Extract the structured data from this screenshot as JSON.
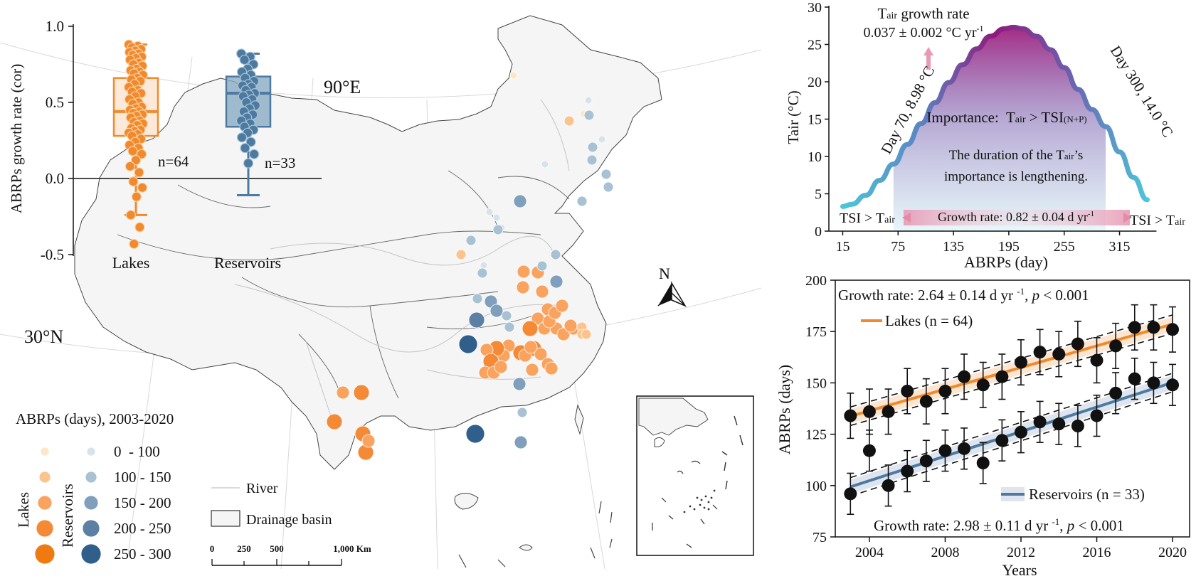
{
  "colors": {
    "lake": "#f08a2c",
    "reservoir": "#4d7aa0",
    "lake_box_fill": "#fde4cf",
    "reservoir_box_fill": "#8aaac3",
    "map_fill": "#f5f5f5",
    "curve_start": "#4cc6d8",
    "curve_peak": "#8e1a7c",
    "band_pink": "#e79ab4"
  },
  "map": {
    "lat_label": "30°N",
    "lon_label": "90°E",
    "north_label": "N",
    "legend_title": "ABRPs (days), 2003-2020",
    "lakes_label": "Lakes",
    "reservoirs_label": "Reservoirs",
    "classes": [
      "0  - 100",
      "100 - 150",
      "150 - 200",
      "200 - 250",
      "250 - 300"
    ],
    "river_label": "River",
    "basin_label": "Drainage basin",
    "scale_ticks": [
      "0",
      "250",
      "500",
      "1,000 Km"
    ]
  },
  "chart_data": [
    {
      "type": "box",
      "ylabel": "ABRPs growth rate (cor)",
      "ylim": [
        -0.5,
        1.0
      ],
      "yticks": [
        "1.0",
        "0.5",
        "0.0",
        "-0.5"
      ],
      "categories": [
        "Lakes",
        "Reservoirs"
      ],
      "counts": [
        "n=64",
        "n=33"
      ],
      "boxes": [
        {
          "name": "Lakes",
          "whisker_low": -0.24,
          "q1": 0.28,
          "median": 0.44,
          "q3": 0.66,
          "whisker_high": 0.88,
          "points": [
            0.88,
            0.87,
            0.86,
            0.85,
            0.84,
            0.83,
            0.82,
            0.81,
            0.8,
            0.79,
            0.78,
            0.76,
            0.75,
            0.74,
            0.72,
            0.71,
            0.7,
            0.69,
            0.68,
            0.66,
            0.65,
            0.64,
            0.62,
            0.6,
            0.58,
            0.57,
            0.56,
            0.54,
            0.52,
            0.5,
            0.49,
            0.47,
            0.46,
            0.45,
            0.44,
            0.43,
            0.42,
            0.41,
            0.4,
            0.38,
            0.37,
            0.36,
            0.35,
            0.33,
            0.32,
            0.31,
            0.3,
            0.29,
            0.28,
            0.26,
            0.24,
            0.22,
            0.2,
            0.18,
            0.16,
            0.12,
            0.08,
            0.04,
            -0.02,
            -0.06,
            -0.12,
            -0.24,
            -0.32,
            -0.43
          ]
        },
        {
          "name": "Reservoirs",
          "whisker_low": -0.11,
          "q1": 0.34,
          "median": 0.56,
          "q3": 0.67,
          "whisker_high": 0.82,
          "points": [
            0.82,
            0.8,
            0.78,
            0.75,
            0.72,
            0.7,
            0.68,
            0.66,
            0.64,
            0.62,
            0.61,
            0.6,
            0.58,
            0.56,
            0.55,
            0.54,
            0.52,
            0.5,
            0.48,
            0.46,
            0.44,
            0.42,
            0.4,
            0.38,
            0.36,
            0.34,
            0.32,
            0.3,
            0.27,
            0.24,
            0.2,
            0.16,
            0.1
          ]
        }
      ]
    },
    {
      "type": "line",
      "xlabel": "ABRPs (day)",
      "ylabel": "Tair (°C)",
      "xticks": [
        15,
        75,
        135,
        195,
        255,
        315
      ],
      "yticks": [
        0,
        5,
        10,
        15,
        20,
        25,
        30
      ],
      "xlim": [
        0,
        355
      ],
      "ylim": [
        0,
        30
      ],
      "x": [
        15,
        25,
        40,
        55,
        70,
        85,
        100,
        115,
        130,
        145,
        160,
        175,
        190,
        200,
        210,
        225,
        240,
        255,
        270,
        285,
        300,
        315,
        330,
        345
      ],
      "y": [
        3.3,
        3.6,
        4.8,
        6.8,
        8.98,
        11.6,
        14.4,
        17.2,
        19.9,
        22.3,
        24.4,
        26.1,
        27.1,
        27.3,
        27.1,
        26.1,
        24.3,
        21.9,
        19.0,
        16.3,
        14.0,
        10.6,
        7.2,
        4.2
      ],
      "tair_growth_title_main": "T",
      "tair_growth_title_sub": "air",
      "tair_growth_title_rest": " growth rate",
      "tair_growth_value": "0.037 ± 0.002 °C yr",
      "tair_growth_value_sup": "-1",
      "day70_label": "Day 70, 8.98 °C",
      "day300_label": "Day 300, 14.0 °C",
      "importance_prefix": "Importance:  T",
      "importance_sub": "air",
      "importance_mid": " > TSI",
      "importance_sub2": "(N+P)",
      "duration_line1_a": "The duration of the T",
      "duration_line1_sub": "air",
      "duration_line1_b": "’s",
      "duration_line2": "importance is lengthening.",
      "tsi_left_a": "TSI > T",
      "tsi_left_sub": "air",
      "tsi_right_a": "TSI > T",
      "tsi_right_sub": "air",
      "growth_rate_label": "Growth rate: 0.82 ± 0.04 d yr",
      "growth_rate_sup": "-1"
    },
    {
      "type": "line",
      "xlabel": "Years",
      "ylabel": "ABRPs (days)",
      "xticks": [
        2004,
        2008,
        2012,
        2016,
        2020
      ],
      "yticks": [
        75,
        100,
        125,
        150,
        175,
        200
      ],
      "xlim": [
        2002.2,
        2020.9
      ],
      "ylim": [
        75,
        200
      ],
      "x": [
        2003,
        2004,
        2005,
        2006,
        2007,
        2008,
        2009,
        2010,
        2011,
        2012,
        2013,
        2014,
        2015,
        2016,
        2017,
        2018,
        2019,
        2020
      ],
      "series": [
        {
          "name": "Lakes (n = 64)",
          "values": [
            134,
            136,
            136,
            146,
            141,
            146,
            153,
            149,
            153,
            160,
            165,
            164,
            169,
            161,
            168,
            177,
            177,
            176
          ],
          "err": 11
        },
        {
          "name": "Reservoirs (n = 33)",
          "values": [
            96,
            117,
            100,
            107,
            112,
            117,
            118,
            111,
            122,
            126,
            131,
            130,
            129,
            134,
            145,
            152,
            150,
            149
          ],
          "err": 10
        }
      ],
      "lakes_growth_a": "Growth rate: 2.64 ± 0.14 d yr ",
      "lakes_growth_sup": "-1",
      "lakes_growth_b": ", ",
      "lakes_growth_p": "p",
      "lakes_growth_c": " < 0.001",
      "res_growth_a": "Growth rate: 2.98 ± 0.11 d yr ",
      "res_growth_sup": "-1",
      "res_growth_b": ", ",
      "res_growth_p": "p",
      "res_growth_c": " < 0.001"
    }
  ]
}
